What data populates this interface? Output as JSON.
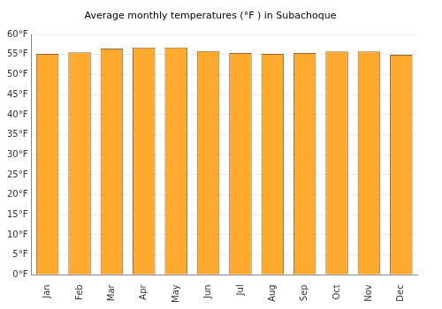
{
  "chart_data": {
    "type": "bar",
    "title": "Average monthly temperatures (°F ) in Subachoque",
    "categories": [
      "Jan",
      "Feb",
      "Mar",
      "Apr",
      "May",
      "Jun",
      "Jul",
      "Aug",
      "Sep",
      "Oct",
      "Nov",
      "Dec"
    ],
    "values": [
      55.2,
      55.6,
      56.5,
      56.8,
      56.8,
      55.9,
      55.4,
      55.2,
      55.4,
      55.8,
      55.8,
      55.0
    ],
    "color": "#ffaa2e",
    "ylim": [
      0,
      60
    ],
    "yticks": [
      {
        "value": 0,
        "label": "0°F"
      },
      {
        "value": 5,
        "label": "5°F"
      },
      {
        "value": 10,
        "label": "10°F"
      },
      {
        "value": 15,
        "label": "15°F"
      },
      {
        "value": 20,
        "label": "20°F"
      },
      {
        "value": 25,
        "label": "25°F"
      },
      {
        "value": 30,
        "label": "30°F"
      },
      {
        "value": 35,
        "label": "35°F"
      },
      {
        "value": 40,
        "label": "40°F"
      },
      {
        "value": 45,
        "label": "45°F"
      },
      {
        "value": 50,
        "label": "50°F"
      },
      {
        "value": 55,
        "label": "55°F"
      },
      {
        "value": 60,
        "label": "60°F"
      }
    ],
    "grid": true
  }
}
